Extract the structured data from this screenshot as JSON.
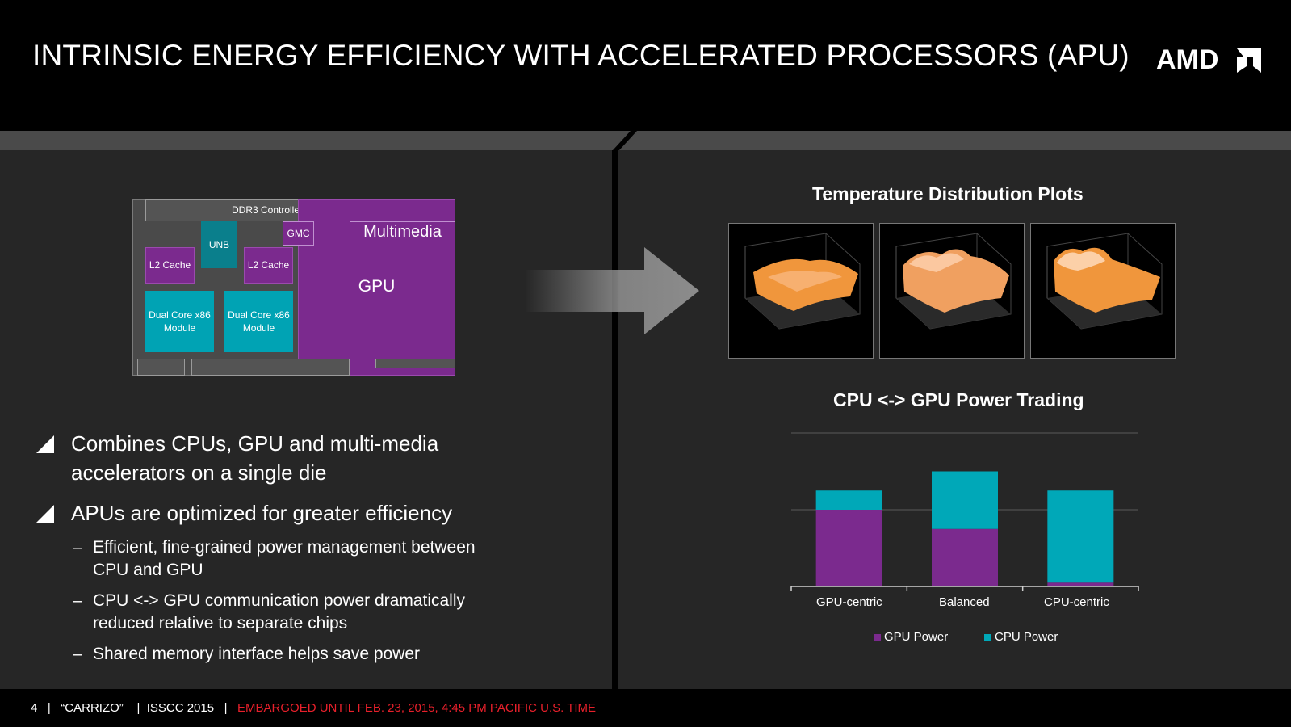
{
  "header": {
    "title": "INTRINSIC ENERGY EFFICIENCY WITH ACCELERATED PROCESSORS (APU)",
    "logo_text": "AMD"
  },
  "die": {
    "ddr3": "DDR3 Controller",
    "unb": "UNB",
    "gmc": "GMC",
    "multimedia": "Multimedia",
    "gpu": "GPU",
    "l2_left": "L2 Cache",
    "l2_right": "L2 Cache",
    "core_left": "Dual Core x86 Module",
    "core_right": "Dual Core x86 Module"
  },
  "bullets": [
    {
      "text": "Combines CPUs, GPU and multi-media accelerators on a single die"
    },
    {
      "text": "APUs are optimized for greater efficiency"
    }
  ],
  "sub_bullets": [
    {
      "dash": "–",
      "text": "Efficient, fine-grained power management between CPU and GPU"
    },
    {
      "dash": "–",
      "text": "CPU <-> GPU communication power dramatically reduced relative to separate chips"
    },
    {
      "dash": "–",
      "text": "Shared memory interface helps save power"
    }
  ],
  "temperature": {
    "title": "Temperature Distribution Plots"
  },
  "chart_data": {
    "type": "bar",
    "stacked": true,
    "title": "CPU <-> GPU Power Trading",
    "categories": [
      "GPU-centric",
      "Balanced",
      "CPU-centric"
    ],
    "series": [
      {
        "name": "GPU Power",
        "color": "#7b2a8e",
        "values": [
          1.0,
          0.75,
          0.05
        ]
      },
      {
        "name": "CPU Power",
        "color": "#00a8b8",
        "values": [
          0.25,
          0.75,
          1.2
        ]
      }
    ],
    "ylim": [
      0,
      2.0
    ],
    "grid": true,
    "legend": "bottom"
  },
  "footer": {
    "page": "4",
    "sep1": "|",
    "project": "“CARRIZO”",
    "sep2": "|",
    "event": "ISSCC 2015",
    "sep3": "|",
    "embargo": "EMBARGOED UNTIL FEB. 23, 2015, 4:45 PM PACIFIC U.S. TIME"
  },
  "colors": {
    "accent_red": "#e8202b",
    "gpu_purple": "#7b2a8e",
    "cpu_cyan": "#00a8b8"
  }
}
